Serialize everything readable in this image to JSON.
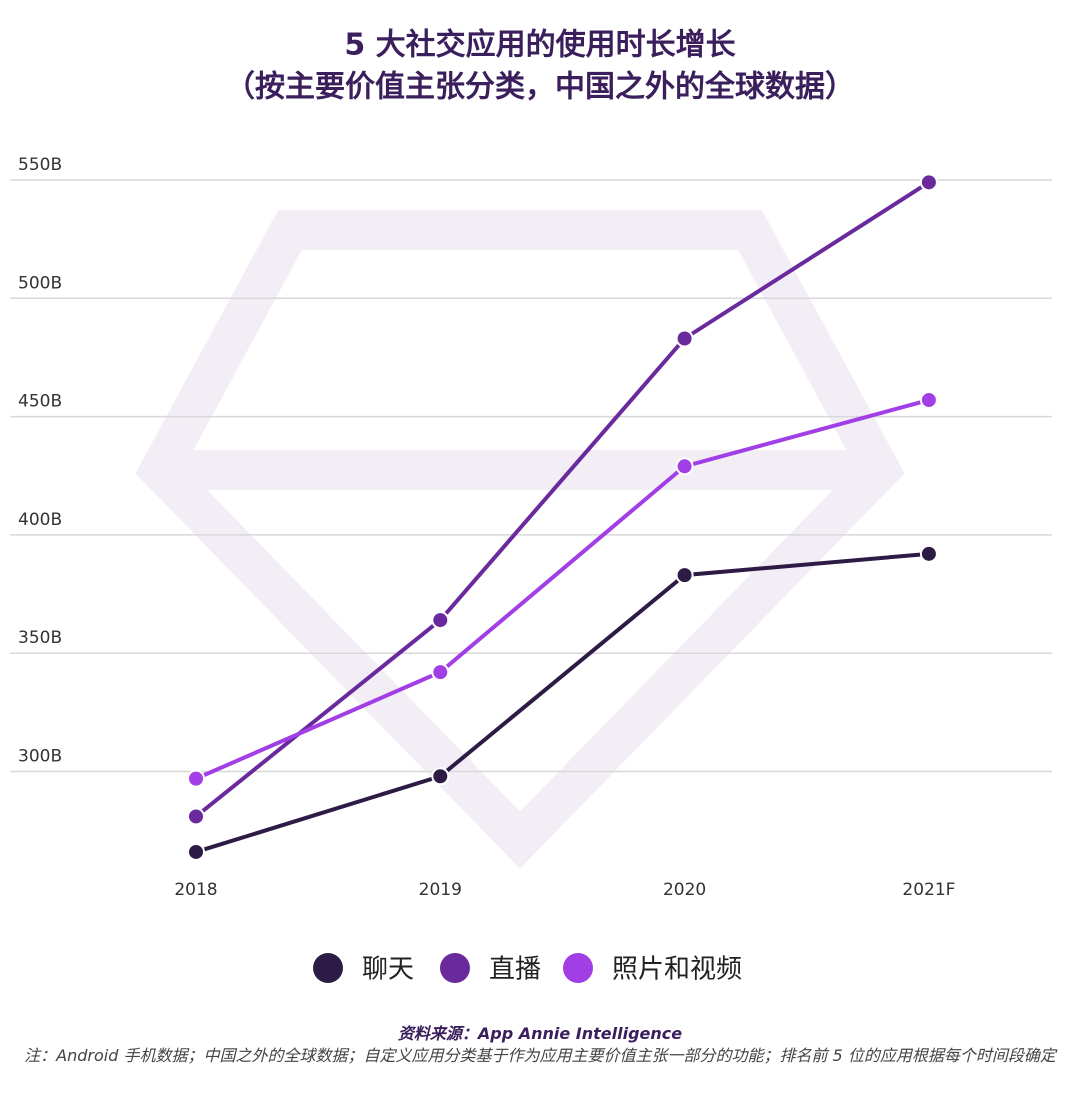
{
  "chart_data": {
    "type": "line",
    "title": "5 大社交应用的使用时长增长",
    "subtitle": "（按主要价值主张分类，中国之外的全球数据）",
    "categories": [
      "2018",
      "2019",
      "2020",
      "2021F"
    ],
    "series": [
      {
        "name": "聊天",
        "color": "#2d1b45",
        "values": [
          266,
          298,
          383,
          392
        ]
      },
      {
        "name": "直播",
        "color": "#6a2a9e",
        "values": [
          281,
          364,
          483,
          549
        ]
      },
      {
        "name": "照片和视频",
        "color": "#a23ee6",
        "values": [
          297,
          342,
          429,
          457
        ]
      }
    ],
    "ylim": [
      255,
      560
    ],
    "yticks": [
      {
        "value": 300,
        "label": "300B"
      },
      {
        "value": 350,
        "label": "350B"
      },
      {
        "value": 400,
        "label": "400B"
      },
      {
        "value": 450,
        "label": "450B"
      },
      {
        "value": 500,
        "label": "500B"
      },
      {
        "value": 550,
        "label": "550B"
      }
    ],
    "grid": true,
    "legend": "bottom",
    "source": "资料来源：App Annie Intelligence",
    "note": "注：Android 手机数据；中国之外的全球数据；自定义应用分类基于作为应用主要价值主张一部分的功能；排名前 5 位的应用根据每个时间段确定"
  }
}
